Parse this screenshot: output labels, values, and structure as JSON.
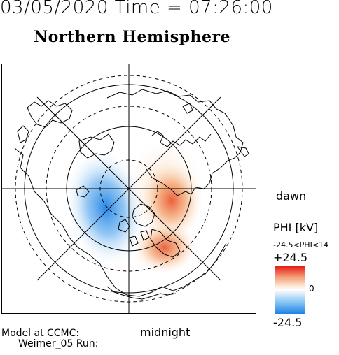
{
  "header": {
    "date_time": "03/05/2020 Time = 07:26:00"
  },
  "map": {
    "title": "Northern Hemisphere",
    "dawn_label": "dawn",
    "midnight_label": "midnight"
  },
  "colorbar": {
    "title": "PHI [kV]",
    "range_text": "-24.5<PHI<14",
    "max_label": "+24.5",
    "zero_label": "0",
    "min_label": "-24.5",
    "colors": {
      "positive": "#e81a1a",
      "zero": "#ffffff",
      "negative": "#1e82e6"
    }
  },
  "model": {
    "line1": "Model at CCMC:",
    "line2": "Weimer_05 Run:"
  }
}
